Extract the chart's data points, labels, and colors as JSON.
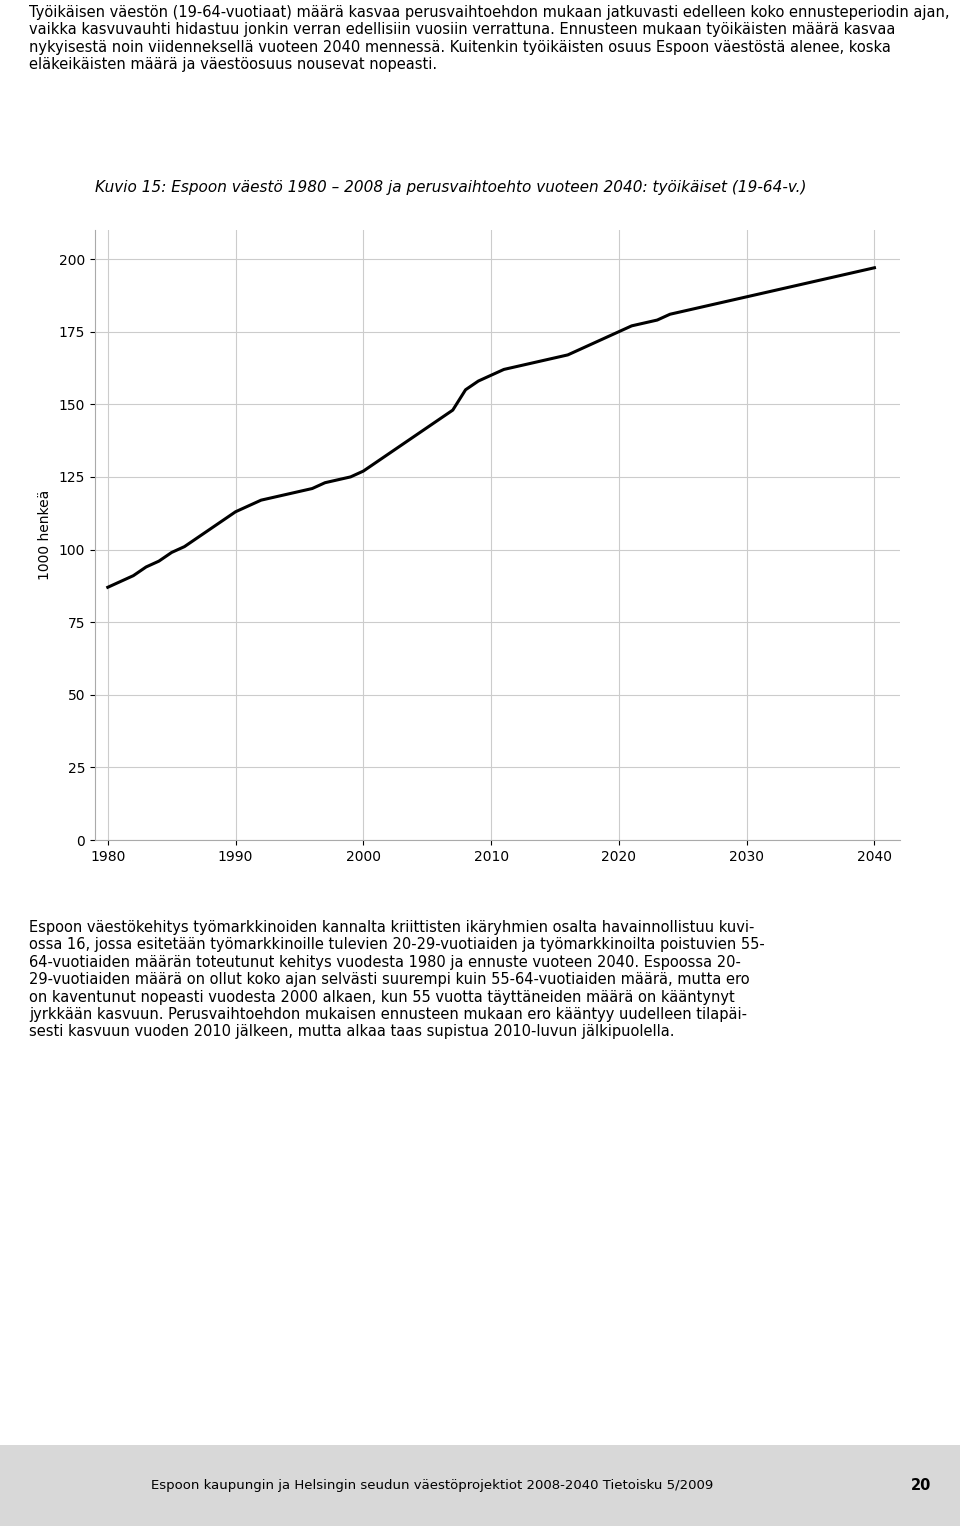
{
  "title": "Kuvio 15: Espoon väestö 1980 – 2008 ja perusvaihtoehto vuoteen 2040: työikäiset (19-64-v.)",
  "ylabel": "1000 henkeä",
  "xlabel": "",
  "ylim": [
    0,
    210
  ],
  "yticks": [
    0,
    25,
    50,
    75,
    100,
    125,
    150,
    175,
    200
  ],
  "xticks": [
    1980,
    1990,
    2000,
    2010,
    2020,
    2030,
    2040
  ],
  "background_color": "#ffffff",
  "line_color": "#000000",
  "grid_color": "#cccccc",
  "years": [
    1980,
    1981,
    1982,
    1983,
    1984,
    1985,
    1986,
    1987,
    1988,
    1989,
    1990,
    1991,
    1992,
    1993,
    1994,
    1995,
    1996,
    1997,
    1998,
    1999,
    2000,
    2001,
    2002,
    2003,
    2004,
    2005,
    2006,
    2007,
    2008,
    2009,
    2010,
    2011,
    2012,
    2013,
    2014,
    2015,
    2016,
    2017,
    2018,
    2019,
    2020,
    2021,
    2022,
    2023,
    2024,
    2025,
    2026,
    2027,
    2028,
    2029,
    2030,
    2031,
    2032,
    2033,
    2034,
    2035,
    2036,
    2037,
    2038,
    2039,
    2040
  ],
  "values": [
    87,
    89,
    91,
    94,
    96,
    99,
    101,
    104,
    107,
    110,
    113,
    115,
    117,
    118,
    119,
    120,
    121,
    123,
    124,
    125,
    127,
    130,
    133,
    136,
    139,
    142,
    145,
    148,
    155,
    158,
    160,
    162,
    163,
    164,
    165,
    166,
    167,
    169,
    171,
    173,
    175,
    177,
    178,
    179,
    181,
    182,
    183,
    184,
    185,
    186,
    187,
    188,
    189,
    190,
    191,
    192,
    193,
    194,
    195,
    196,
    197
  ],
  "text_top": "Työikäisen väestön (19-64-vuotiaat) määrä kasvaa perusvaihtoehdon mukaan jatkuvasti edelleen koko ennusteperiodin ajan, vaikka kasvuvauhti hidastuu jonkin verran edellisiin vuosiin verrattuna. Ennusteen mukaan työikäisten määrä kasvaa nykyisestä noin viidenneksellä vuoteen 2040 mennessä. Kuitenkin työikäisten osuus Espoon väestöstä alenee, koska eläkeikäisten määrä ja väestöosuus nousevat nopeasti.",
  "text_bottom": "Espoon väestökehitys työmarkkinoiden kannalta kriittisten ikäryhmien osalta havainnollistuu kuvi-\nossa 16, jossa esitetään työmarkkinoille tulevien 20-29-vuotiaiden ja työmarkkinoilta poistuvien 55-\n64-vuotiaiden määrän toteutunut kehitys vuodesta 1980 ja ennuste vuoteen 2040. Espoossa 20-\n29-vuotiaiden määrä on ollut koko ajan selvästi suurempi kuin 55-64-vuotiaiden määrä, mutta ero\non kaventunut nopeasti vuodesta 2000 alkaen, kun 55 vuotta täyttäneiden määrä on kääntynyt\njyrkkään kasvuun. Perusvaihtoehdon mukaisen ennusteen mukaan ero kääntyy uudelleen tilapäi-\nsesti kasvuun vuoden 2010 jälkeen, mutta alkaa taas supistua 2010-luvun jälkipuolella.",
  "footer_text": "Espoon kaupungin ja Helsingin seudun väestöprojektiot 2008-2040 Tietoisku 5/2009",
  "footer_page": "20",
  "title_fontsize": 11,
  "axis_fontsize": 10,
  "tick_fontsize": 10,
  "body_fontsize": 10.5,
  "footer_fontsize": 9.5,
  "line_width": 2.2
}
